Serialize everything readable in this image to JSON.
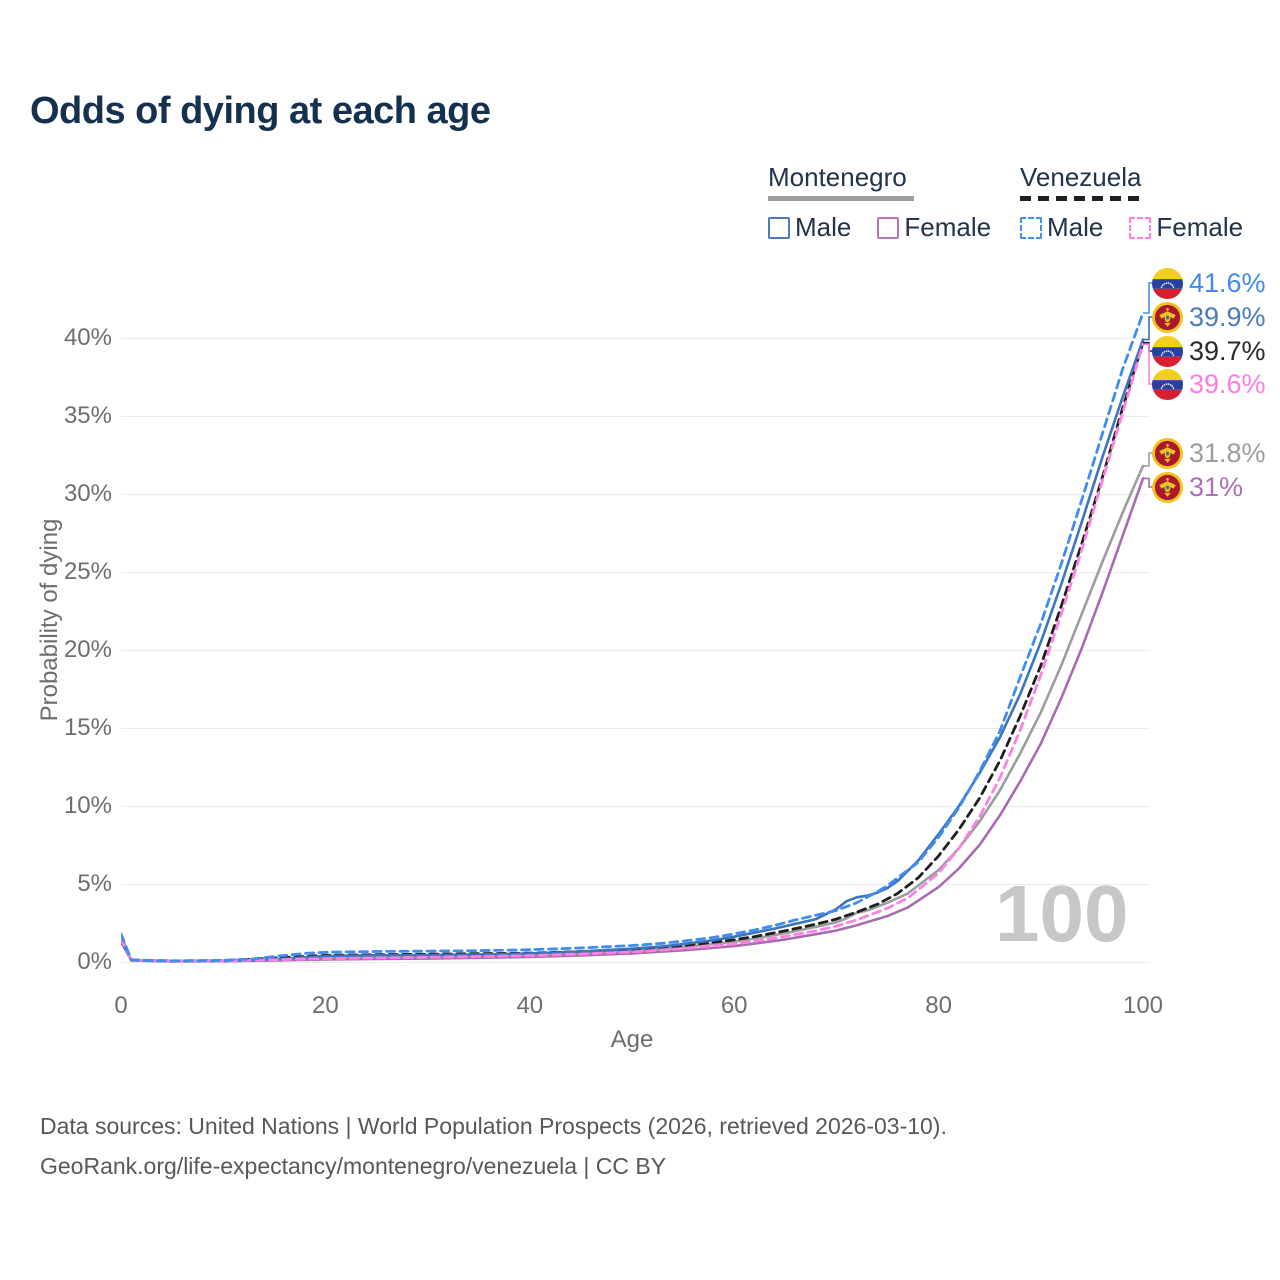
{
  "title": "Odds of dying at each age",
  "watermark": "100",
  "colors": {
    "title_text": "#16314e",
    "legend_text": "#22334a",
    "mne_male": "#4d7ab8",
    "mne_female": "#b678ba",
    "mne_all": "#9d9d9d",
    "ven_male": "#3f8df2",
    "ven_female": "#ff80e4",
    "ven_all": "#1f1f1f",
    "axis_text": "#6e6e6e",
    "grid": "#ebebeb",
    "watermark_color": "#c7c7c7"
  },
  "legend": {
    "montenegro": {
      "label": "Montenegro",
      "male": "Male",
      "female": "Female"
    },
    "venezuela": {
      "label": "Venezuela",
      "male": "Male",
      "female": "Female"
    }
  },
  "chart_data": {
    "type": "line",
    "title": "Odds of dying at each age",
    "xlabel": "Age",
    "ylabel": "Probability of dying",
    "xlim": [
      0,
      100
    ],
    "ylim": [
      0,
      44
    ],
    "x_ticks": [
      0,
      20,
      40,
      60,
      80,
      100
    ],
    "y_tick_values": [
      0,
      5,
      10,
      15,
      20,
      25,
      30,
      35,
      40
    ],
    "y_tick_labels": [
      "0%",
      "5%",
      "10%",
      "15%",
      "20%",
      "25%",
      "30%",
      "35%",
      "40%"
    ],
    "grid": "horizontal",
    "legend_position": "top-right",
    "series": [
      {
        "id": "mne_t",
        "name": "Montenegro (both sexes)",
        "color": "#9d9d9d",
        "dashed": false,
        "end_label": {
          "text": "31.8%",
          "color": "#9e9e9e",
          "flag": "me"
        },
        "points": [
          [
            0,
            1.4
          ],
          [
            1,
            0.11
          ],
          [
            5,
            0.05
          ],
          [
            10,
            0.06
          ],
          [
            15,
            0.12
          ],
          [
            20,
            0.28
          ],
          [
            25,
            0.31
          ],
          [
            30,
            0.35
          ],
          [
            35,
            0.4
          ],
          [
            40,
            0.46
          ],
          [
            45,
            0.56
          ],
          [
            50,
            0.71
          ],
          [
            55,
            0.95
          ],
          [
            60,
            1.3
          ],
          [
            62,
            1.5
          ],
          [
            65,
            1.85
          ],
          [
            68,
            2.25
          ],
          [
            70,
            2.55
          ],
          [
            71,
            2.8
          ],
          [
            72,
            3.15
          ],
          [
            73,
            3.3
          ],
          [
            75,
            3.8
          ],
          [
            77,
            4.4
          ],
          [
            80,
            5.9
          ],
          [
            82,
            7.3
          ],
          [
            84,
            9.0
          ],
          [
            86,
            11.0
          ],
          [
            88,
            13.4
          ],
          [
            90,
            16.0
          ],
          [
            92,
            19.0
          ],
          [
            94,
            22.3
          ],
          [
            96,
            25.6
          ],
          [
            98,
            28.8
          ],
          [
            100,
            31.8
          ]
        ]
      },
      {
        "id": "mne_f",
        "name": "Montenegro Female",
        "color": "#a76cb0",
        "dashed": false,
        "end_label": {
          "text": "31%",
          "color": "#a972b2",
          "flag": "me"
        },
        "points": [
          [
            0,
            1.3
          ],
          [
            1,
            0.1
          ],
          [
            5,
            0.04
          ],
          [
            10,
            0.05
          ],
          [
            15,
            0.1
          ],
          [
            20,
            0.16
          ],
          [
            25,
            0.19
          ],
          [
            30,
            0.22
          ],
          [
            35,
            0.27
          ],
          [
            40,
            0.33
          ],
          [
            45,
            0.42
          ],
          [
            50,
            0.55
          ],
          [
            55,
            0.75
          ],
          [
            60,
            1.02
          ],
          [
            62,
            1.18
          ],
          [
            65,
            1.45
          ],
          [
            68,
            1.78
          ],
          [
            70,
            2.02
          ],
          [
            72,
            2.35
          ],
          [
            75,
            2.95
          ],
          [
            77,
            3.5
          ],
          [
            80,
            4.8
          ],
          [
            82,
            6.0
          ],
          [
            84,
            7.5
          ],
          [
            86,
            9.4
          ],
          [
            88,
            11.6
          ],
          [
            90,
            14.0
          ],
          [
            92,
            16.9
          ],
          [
            94,
            20.1
          ],
          [
            96,
            23.6
          ],
          [
            98,
            27.3
          ],
          [
            100,
            31.0
          ]
        ]
      },
      {
        "id": "ven_t",
        "name": "Venezuela (both sexes)",
        "color": "#1f1f1f",
        "dashed": true,
        "end_label": {
          "text": "39.7%",
          "color": "#2a2a2a",
          "flag": "ve"
        },
        "points": [
          [
            0,
            1.6
          ],
          [
            1,
            0.13
          ],
          [
            5,
            0.07
          ],
          [
            10,
            0.09
          ],
          [
            15,
            0.25
          ],
          [
            20,
            0.43
          ],
          [
            25,
            0.47
          ],
          [
            30,
            0.5
          ],
          [
            35,
            0.53
          ],
          [
            40,
            0.57
          ],
          [
            45,
            0.67
          ],
          [
            50,
            0.82
          ],
          [
            55,
            1.05
          ],
          [
            60,
            1.42
          ],
          [
            62,
            1.63
          ],
          [
            65,
            2.0
          ],
          [
            68,
            2.42
          ],
          [
            70,
            2.75
          ],
          [
            72,
            3.2
          ],
          [
            74,
            3.7
          ],
          [
            76,
            4.4
          ],
          [
            78,
            5.4
          ],
          [
            80,
            6.8
          ],
          [
            82,
            8.5
          ],
          [
            84,
            10.5
          ],
          [
            86,
            12.9
          ],
          [
            88,
            15.8
          ],
          [
            90,
            19.0
          ],
          [
            92,
            22.8
          ],
          [
            94,
            26.8
          ],
          [
            96,
            31.0
          ],
          [
            98,
            35.5
          ],
          [
            100,
            39.7
          ]
        ]
      },
      {
        "id": "mne_m",
        "name": "Montenegro Male",
        "color": "#3d74bd",
        "dashed": false,
        "end_label": {
          "text": "39.9%",
          "color": "#4a7bbd",
          "flag": "me"
        },
        "points": [
          [
            0,
            1.5
          ],
          [
            1,
            0.12
          ],
          [
            3,
            0.07
          ],
          [
            5,
            0.06
          ],
          [
            8,
            0.06
          ],
          [
            10,
            0.07
          ],
          [
            13,
            0.1
          ],
          [
            15,
            0.16
          ],
          [
            18,
            0.3
          ],
          [
            20,
            0.38
          ],
          [
            23,
            0.41
          ],
          [
            26,
            0.43
          ],
          [
            30,
            0.44
          ],
          [
            34,
            0.47
          ],
          [
            38,
            0.52
          ],
          [
            40,
            0.55
          ],
          [
            43,
            0.62
          ],
          [
            46,
            0.7
          ],
          [
            50,
            0.85
          ],
          [
            53,
            1.0
          ],
          [
            55,
            1.15
          ],
          [
            58,
            1.4
          ],
          [
            60,
            1.62
          ],
          [
            62,
            1.88
          ],
          [
            64,
            2.15
          ],
          [
            66,
            2.45
          ],
          [
            68,
            2.75
          ],
          [
            70,
            3.4
          ],
          [
            71,
            3.9
          ],
          [
            72,
            4.15
          ],
          [
            73,
            4.25
          ],
          [
            74,
            4.45
          ],
          [
            75,
            4.75
          ],
          [
            76,
            5.2
          ],
          [
            78,
            6.5
          ],
          [
            80,
            8.2
          ],
          [
            82,
            10.0
          ],
          [
            84,
            12.1
          ],
          [
            86,
            14.4
          ],
          [
            88,
            17.2
          ],
          [
            90,
            20.5
          ],
          [
            92,
            24.2
          ],
          [
            94,
            28.2
          ],
          [
            96,
            32.3
          ],
          [
            98,
            36.2
          ],
          [
            100,
            39.9
          ]
        ]
      },
      {
        "id": "ven_f",
        "name": "Venezuela Female",
        "color": "#ff80e4",
        "dashed": true,
        "end_label": {
          "text": "39.6%",
          "color": "#ff7ce2",
          "flag": "ve"
        },
        "points": [
          [
            0,
            1.5
          ],
          [
            1,
            0.12
          ],
          [
            5,
            0.06
          ],
          [
            10,
            0.07
          ],
          [
            15,
            0.15
          ],
          [
            20,
            0.22
          ],
          [
            25,
            0.26
          ],
          [
            30,
            0.3
          ],
          [
            35,
            0.35
          ],
          [
            40,
            0.41
          ],
          [
            45,
            0.51
          ],
          [
            50,
            0.65
          ],
          [
            55,
            0.86
          ],
          [
            60,
            1.16
          ],
          [
            62,
            1.33
          ],
          [
            65,
            1.65
          ],
          [
            68,
            2.0
          ],
          [
            70,
            2.3
          ],
          [
            72,
            2.7
          ],
          [
            75,
            3.45
          ],
          [
            77,
            4.1
          ],
          [
            80,
            5.7
          ],
          [
            82,
            7.3
          ],
          [
            84,
            9.3
          ],
          [
            86,
            11.8
          ],
          [
            88,
            14.9
          ],
          [
            90,
            18.4
          ],
          [
            92,
            22.3
          ],
          [
            94,
            26.4
          ],
          [
            96,
            30.8
          ],
          [
            98,
            35.2
          ],
          [
            100,
            39.6
          ]
        ]
      },
      {
        "id": "ven_m",
        "name": "Venezuela Male",
        "color": "#3f8df2",
        "dashed": true,
        "end_label": {
          "text": "41.6%",
          "color": "#3f8af0",
          "flag": "ve"
        },
        "points": [
          [
            0,
            1.8
          ],
          [
            1,
            0.15
          ],
          [
            3,
            0.09
          ],
          [
            5,
            0.08
          ],
          [
            8,
            0.09
          ],
          [
            10,
            0.11
          ],
          [
            13,
            0.2
          ],
          [
            15,
            0.35
          ],
          [
            18,
            0.55
          ],
          [
            20,
            0.62
          ],
          [
            23,
            0.66
          ],
          [
            26,
            0.68
          ],
          [
            30,
            0.7
          ],
          [
            34,
            0.72
          ],
          [
            38,
            0.76
          ],
          [
            40,
            0.79
          ],
          [
            43,
            0.85
          ],
          [
            46,
            0.93
          ],
          [
            50,
            1.06
          ],
          [
            53,
            1.2
          ],
          [
            55,
            1.34
          ],
          [
            58,
            1.58
          ],
          [
            60,
            1.8
          ],
          [
            62,
            2.05
          ],
          [
            64,
            2.35
          ],
          [
            66,
            2.7
          ],
          [
            68,
            3.0
          ],
          [
            70,
            3.3
          ],
          [
            72,
            3.8
          ],
          [
            74,
            4.5
          ],
          [
            75,
            4.9
          ],
          [
            76,
            5.4
          ],
          [
            78,
            6.4
          ],
          [
            80,
            8.0
          ],
          [
            82,
            9.9
          ],
          [
            84,
            12.2
          ],
          [
            86,
            14.8
          ],
          [
            88,
            18.3
          ],
          [
            90,
            21.7
          ],
          [
            92,
            25.5
          ],
          [
            94,
            29.6
          ],
          [
            96,
            33.8
          ],
          [
            98,
            38.0
          ],
          [
            100,
            41.6
          ]
        ]
      }
    ]
  },
  "footer": {
    "line1": "Data sources: United Nations | World Population Prospects (2026, retrieved 2026-03-10).",
    "line2": "GeoRank.org/life-expectancy/montenegro/venezuela | CC BY"
  }
}
